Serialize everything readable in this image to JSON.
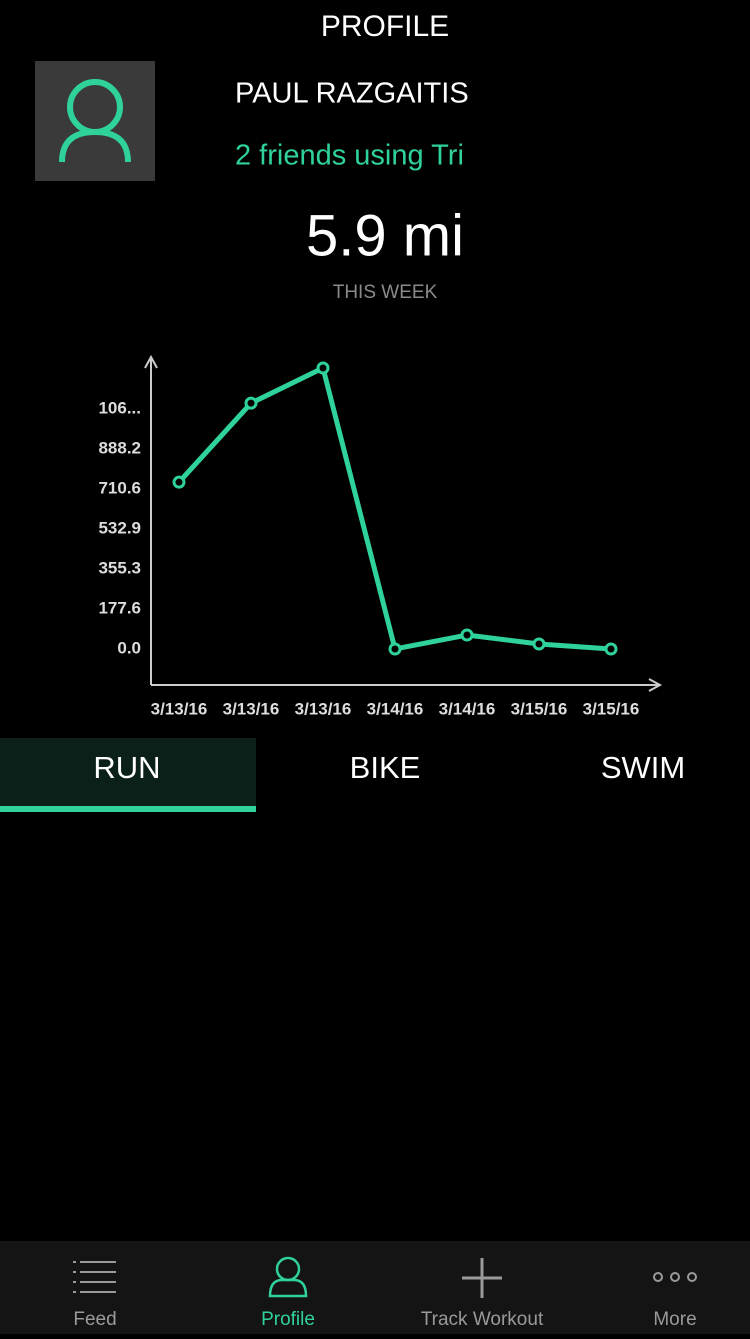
{
  "header": {
    "title": "PROFILE"
  },
  "profile": {
    "name": "PAUL RAZGAITIS",
    "friends": "2 friends using Tri",
    "distance": "5.9 mi",
    "period": "THIS WEEK"
  },
  "chart_data": {
    "type": "line",
    "categories": [
      "3/13/16",
      "3/13/16",
      "3/13/16",
      "3/14/16",
      "3/14/16",
      "3/15/16",
      "3/15/16"
    ],
    "series": [
      {
        "color": "#2fd39a",
        "values": [
          741,
          1092,
          1248,
          0,
          62,
          22,
          0
        ]
      }
    ],
    "ylim": [
      -160,
      1297
    ],
    "yticks": [
      {
        "value": 0,
        "label": "0.0"
      },
      177.6,
      355.3,
      532.9,
      710.6,
      888.2,
      {
        "value": 1065.9,
        "label": "106..."
      }
    ]
  },
  "tabs": [
    "RUN",
    "BIKE",
    "SWIM"
  ],
  "nav": [
    "Feed",
    "Profile",
    "Track Workout",
    "More"
  ]
}
